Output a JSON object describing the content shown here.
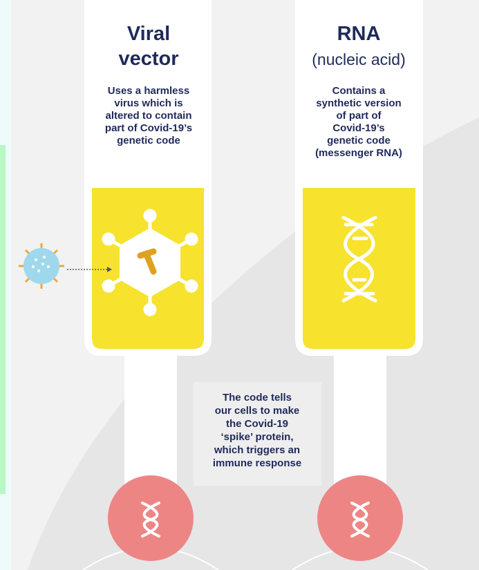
{
  "columns": [
    {
      "title_lines": [
        "Viral",
        "vector"
      ],
      "description_lines": [
        "Uses a harmless",
        "virus which is",
        "altered to contain",
        "part of Covid-19’s",
        "genetic code"
      ]
    },
    {
      "title_lines": [
        "RNA",
        "(nucleic acid)"
      ],
      "description_lines": [
        "Contains a",
        "synthetic version",
        "of part of",
        "Covid-19’s",
        "genetic code",
        "(messenger RNA)"
      ]
    }
  ],
  "center_note_lines": [
    "The code tells",
    "our cells to make",
    "the Covid-19",
    "‘spike’ protein,",
    "which triggers an",
    "immune response"
  ]
}
